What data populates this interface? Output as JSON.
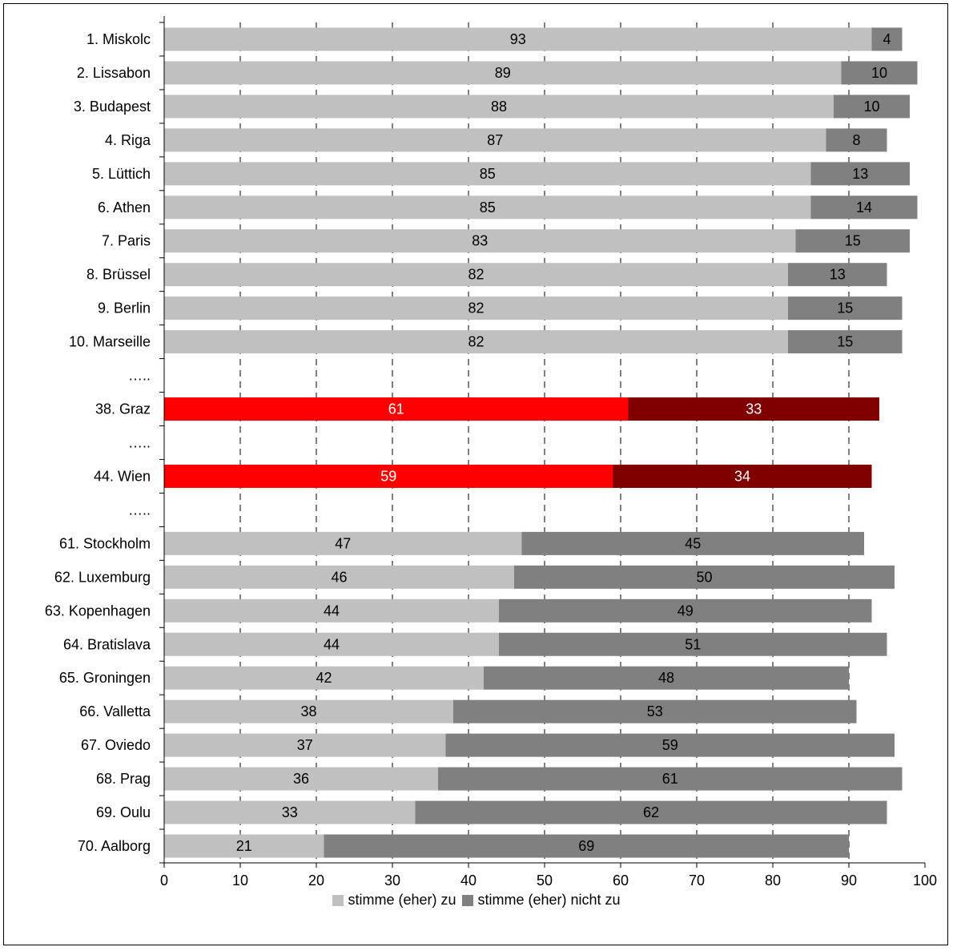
{
  "chart_data": {
    "type": "bar",
    "orientation": "horizontal",
    "stacked": true,
    "categories": [
      "1. Miskolc",
      "2. Lissabon",
      "3. Budapest",
      "4. Riga",
      "5. Lüttich",
      "6. Athen",
      "7. Paris",
      "8. Brüssel",
      "9. Berlin",
      "10. Marseille",
      "…..",
      "38. Graz",
      "…..",
      "44. Wien",
      "…..",
      "61. Stockholm",
      "62. Luxemburg",
      "63. Kopenhagen",
      "64. Bratislava",
      "65. Groningen",
      "66. Valletta",
      "67. Oviedo",
      "68. Prag",
      "69. Oulu",
      "70. Aalborg"
    ],
    "series": [
      {
        "name": "stimme (eher) zu",
        "values": [
          93,
          89,
          88,
          87,
          85,
          85,
          83,
          82,
          82,
          82,
          null,
          61,
          null,
          59,
          null,
          47,
          46,
          44,
          44,
          42,
          38,
          37,
          36,
          33,
          21
        ]
      },
      {
        "name": "stimme (eher) nicht zu",
        "values": [
          4,
          10,
          10,
          8,
          13,
          14,
          15,
          13,
          15,
          15,
          null,
          33,
          null,
          34,
          null,
          45,
          50,
          49,
          51,
          48,
          53,
          59,
          61,
          62,
          69
        ]
      }
    ],
    "highlighted_categories": [
      "38. Graz",
      "44. Wien"
    ],
    "xlim": [
      0,
      100
    ],
    "xticks": [
      "0",
      "10",
      "20",
      "30",
      "40",
      "50",
      "60",
      "70",
      "80",
      "90",
      "100"
    ],
    "grid": "vertical dashed",
    "legend_position": "bottom",
    "colors": {
      "agree": "#c0c0c0",
      "disagree": "#808080",
      "agree_highlight": "#ff0000",
      "disagree_highlight": "#800000"
    }
  }
}
